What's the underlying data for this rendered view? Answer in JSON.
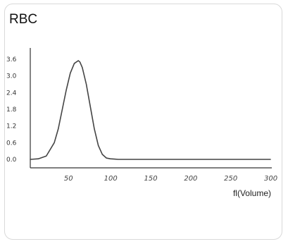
{
  "card": {
    "title": "RBC"
  },
  "chart_data": {
    "type": "line",
    "title": "RBC",
    "xlabel": "fl(Volume)",
    "ylabel": "",
    "xlim": [
      0,
      300
    ],
    "ylim": [
      -0.2,
      4.2
    ],
    "x_ticks": [
      50,
      100,
      150,
      200,
      250,
      300
    ],
    "x_tick_labels": [
      "50",
      "100",
      "150",
      "200",
      "250",
      "300"
    ],
    "y_ticks": [
      0.0,
      0.6,
      1.2,
      1.8,
      2.4,
      3.0,
      3.6
    ],
    "y_tick_labels": [
      "0.0",
      "0.6",
      "1.2",
      "1.8",
      "2.4",
      "3.0",
      "3.6"
    ],
    "grid": false,
    "series": [
      {
        "color": "#444444",
        "x": [
          0,
          10,
          20,
          30,
          35,
          40,
          45,
          50,
          55,
          60,
          62,
          65,
          70,
          75,
          80,
          85,
          90,
          95,
          100,
          105,
          110,
          120,
          150,
          200,
          250,
          300
        ],
        "y": [
          0.0,
          0.02,
          0.12,
          0.6,
          1.1,
          1.8,
          2.5,
          3.1,
          3.45,
          3.55,
          3.5,
          3.3,
          2.7,
          1.9,
          1.1,
          0.5,
          0.18,
          0.05,
          0.02,
          0.01,
          0.0,
          0.0,
          0.0,
          0.0,
          0.0,
          0.0
        ]
      }
    ]
  }
}
